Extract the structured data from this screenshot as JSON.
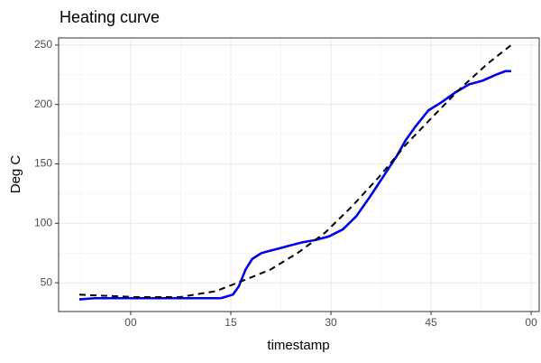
{
  "chart_data": {
    "type": "line",
    "title": "Heating curve",
    "x_label": "timestamp",
    "y_label": "Deg C",
    "xlim": [
      -10.8,
      61.2
    ],
    "xticks": [
      {
        "value": 0,
        "label": "00"
      },
      15,
      30,
      45,
      {
        "value": 60,
        "label": "00"
      }
    ],
    "ylim": [
      25.8,
      256
    ],
    "yticks": [
      50,
      100,
      150,
      200,
      250
    ],
    "grid": true,
    "series": [
      {
        "color": "#0000ee",
        "linetype": "solid",
        "x": [
          -7.7,
          -5.4,
          0.7,
          13.5,
          15.3,
          16.2,
          17.2,
          18.2,
          19.6,
          20.9,
          22.3,
          23.6,
          25.7,
          27.7,
          29.7,
          31.8,
          33.8,
          35.8,
          37.8,
          39.9,
          41.2,
          42.6,
          44.6,
          46.6,
          48.6,
          50.7,
          52.7,
          54.7,
          56.1,
          57.0
        ],
        "values": [
          36,
          37,
          37,
          37,
          40,
          47,
          61,
          70,
          75,
          77,
          79,
          81,
          84,
          86,
          89,
          95,
          106,
          122,
          139,
          157,
          170,
          181,
          195,
          202,
          210,
          217,
          220,
          225,
          228,
          228
        ]
      },
      {
        "color": "#000000",
        "linetype": "dashed",
        "x": [
          -7.7,
          0.7,
          7.4,
          12.8,
          16.9,
          20.9,
          25.0,
          29.1,
          33.1,
          37.2,
          41.2,
          45.3,
          49.3,
          53.4,
          57.0
        ],
        "values": [
          40,
          38,
          38,
          43,
          52,
          61,
          75,
          92,
          114,
          139,
          166,
          190,
          213,
          234,
          250
        ]
      }
    ]
  }
}
